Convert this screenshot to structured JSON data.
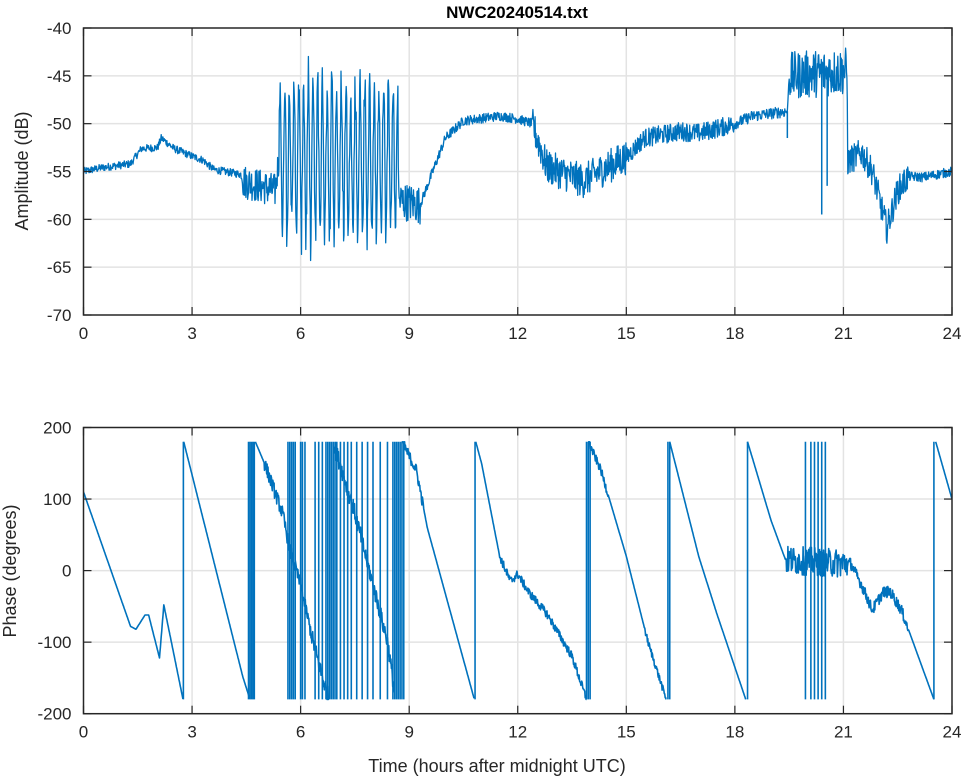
{
  "chart_data": [
    {
      "type": "line",
      "title": "NWC20240514.txt",
      "xlabel": "",
      "ylabel": "Amplitude (dB)",
      "xlim": [
        0,
        24
      ],
      "ylim": [
        -70,
        -40
      ],
      "xticks": [
        0,
        3,
        6,
        9,
        12,
        15,
        18,
        21,
        24
      ],
      "yticks": [
        -40,
        -45,
        -50,
        -55,
        -60,
        -65,
        -70
      ],
      "grid": true,
      "color": "#0072BD",
      "series": [
        {
          "name": "Amplitude",
          "center": [
            [
              0,
              -55
            ],
            [
              0.5,
              -54.6
            ],
            [
              1.3,
              -54.2
            ],
            [
              1.6,
              -52.6
            ],
            [
              2.05,
              -52.5
            ],
            [
              2.15,
              -51.5
            ],
            [
              2.5,
              -52.6
            ],
            [
              3,
              -53.4
            ],
            [
              3.3,
              -53.8
            ],
            [
              3.6,
              -54.8
            ],
            [
              4.35,
              -55.3
            ],
            [
              4.4,
              -56
            ],
            [
              5.3,
              -57
            ],
            [
              5.4,
              -53.5
            ],
            [
              8.68,
              -53.5
            ],
            [
              8.7,
              -58
            ],
            [
              9.3,
              -58.5
            ],
            [
              9.5,
              -56.5
            ],
            [
              10,
              -51.5
            ],
            [
              10.5,
              -49.7
            ],
            [
              11.5,
              -49.2
            ],
            [
              12,
              -49.5
            ],
            [
              12.4,
              -50
            ],
            [
              12.8,
              -54.5
            ],
            [
              13.8,
              -56
            ],
            [
              14.5,
              -54.5
            ],
            [
              15,
              -53.5
            ],
            [
              15.5,
              -51.5
            ],
            [
              16.5,
              -50.8
            ],
            [
              17,
              -51
            ],
            [
              18,
              -50
            ],
            [
              18.5,
              -49.2
            ],
            [
              19.45,
              -48.7
            ],
            [
              19.5,
              -45
            ],
            [
              21.1,
              -44.5
            ],
            [
              21.12,
              -54
            ],
            [
              21.5,
              -53
            ],
            [
              21.8,
              -55
            ],
            [
              22.2,
              -61
            ],
            [
              22.5,
              -57
            ],
            [
              22.8,
              -55.5
            ],
            [
              23.2,
              -55.6
            ],
            [
              24,
              -55
            ]
          ],
          "noise": [
            [
              0,
              4.4,
              0.4
            ],
            [
              4.4,
              5.4,
              1.8
            ],
            [
              5.4,
              8.7,
              2
            ],
            [
              8.7,
              9.3,
              2
            ],
            [
              9.3,
              12.4,
              0.5
            ],
            [
              12.4,
              15,
              1.8
            ],
            [
              15,
              18,
              1
            ],
            [
              18,
              19.45,
              0.6
            ],
            [
              19.5,
              21.1,
              2.5
            ],
            [
              21.1,
              22.8,
              1.5
            ],
            [
              22.8,
              24,
              0.5
            ]
          ],
          "oscillation": [
            [
              5.4,
              8.7,
              7.5,
              0.13
            ]
          ],
          "dips": [
            [
              19.45,
              -51.5
            ],
            [
              20.4,
              -59.5
            ],
            [
              20.55,
              -56.5
            ]
          ]
        }
      ]
    },
    {
      "type": "line",
      "title": "",
      "xlabel": "Time (hours after midnight UTC)",
      "ylabel": "Phase (degrees)",
      "xlim": [
        0,
        24
      ],
      "ylim": [
        -200,
        200
      ],
      "xticks": [
        0,
        3,
        6,
        9,
        12,
        15,
        18,
        21,
        24
      ],
      "yticks": [
        200,
        100,
        0,
        -100,
        -200
      ],
      "grid": true,
      "color": "#0072BD",
      "series": [
        {
          "name": "Phase",
          "segments": [
            [
              [
                0,
                110
              ],
              [
                1.3,
                -78
              ],
              [
                1.45,
                -82
              ],
              [
                1.7,
                -62
              ],
              [
                1.8,
                -62
              ],
              [
                2.1,
                -122
              ],
              [
                2.22,
                -48
              ],
              [
                2.75,
                -180
              ]
            ],
            [
              [
                2.77,
                180
              ],
              [
                4.4,
                -148
              ],
              [
                4.6,
                -180
              ]
            ],
            [
              [
                4.75,
                180
              ],
              [
                5.0,
                150
              ],
              [
                5.5,
                80
              ],
              [
                5.7,
                30
              ],
              [
                6.0,
                -20
              ],
              [
                6.3,
                -90
              ],
              [
                6.6,
                -150
              ],
              [
                6.8,
                -180
              ]
            ],
            [
              [
                6.9,
                180
              ],
              [
                7.5,
                80
              ],
              [
                8.0,
                -20
              ],
              [
                8.4,
                -100
              ],
              [
                8.6,
                -170
              ]
            ],
            [
              [
                8.8,
                180
              ],
              [
                9.2,
                140
              ],
              [
                9.5,
                60
              ],
              [
                10.8,
                -180
              ]
            ],
            [
              [
                10.84,
                180
              ],
              [
                11,
                150
              ],
              [
                11.5,
                20
              ],
              [
                11.8,
                -15
              ],
              [
                12,
                -5
              ],
              [
                12.3,
                -30
              ],
              [
                12.8,
                -60
              ],
              [
                13.5,
                -120
              ],
              [
                13.9,
                -180
              ]
            ],
            [
              [
                13.95,
                180
              ],
              [
                14.3,
                140
              ],
              [
                15,
                20
              ],
              [
                15.6,
                -100
              ],
              [
                16.1,
                -180
              ]
            ],
            [
              [
                16.2,
                180
              ],
              [
                16.5,
                120
              ],
              [
                17,
                20
              ],
              [
                17.5,
                -60
              ],
              [
                18.3,
                -180
              ]
            ],
            [
              [
                18.35,
                180
              ],
              [
                19,
                70
              ],
              [
                19.4,
                15
              ],
              [
                21,
                10
              ],
              [
                21.2,
                10
              ],
              [
                21.5,
                -20
              ],
              [
                21.8,
                -55
              ],
              [
                22.1,
                -30
              ],
              [
                22.3,
                -30
              ],
              [
                22.6,
                -55
              ],
              [
                23.5,
                -180
              ]
            ],
            [
              [
                23.55,
                180
              ],
              [
                24,
                100
              ]
            ]
          ],
          "noise": [
            [
              5,
              6.3,
              10
            ],
            [
              6.3,
              8.8,
              12
            ],
            [
              8.8,
              9.4,
              8
            ],
            [
              11.5,
              13.9,
              6
            ],
            [
              13.9,
              14.5,
              6
            ],
            [
              15.5,
              16.1,
              5
            ],
            [
              19.4,
              21.1,
              20
            ],
            [
              21.1,
              22.8,
              8
            ]
          ],
          "wraps": [
            2.76,
            4.56,
            4.6,
            4.64,
            4.68,
            4.72,
            5.65,
            5.7,
            5.75,
            5.8,
            5.85,
            6.0,
            6.05,
            6.12,
            6.4,
            6.5,
            6.6,
            6.7,
            6.75,
            6.8,
            6.85,
            6.9,
            6.95,
            7.0,
            7.1,
            7.2,
            7.3,
            7.4,
            7.55,
            7.7,
            7.85,
            8.0,
            8.2,
            8.4,
            8.55,
            8.6,
            8.65,
            8.7,
            8.75,
            8.8,
            8.85,
            10.82,
            13.9,
            13.95,
            14.0,
            16.15,
            16.2,
            18.35,
            19.95,
            20.1,
            20.2,
            20.3,
            20.4,
            20.5,
            23.5
          ]
        }
      ]
    }
  ]
}
